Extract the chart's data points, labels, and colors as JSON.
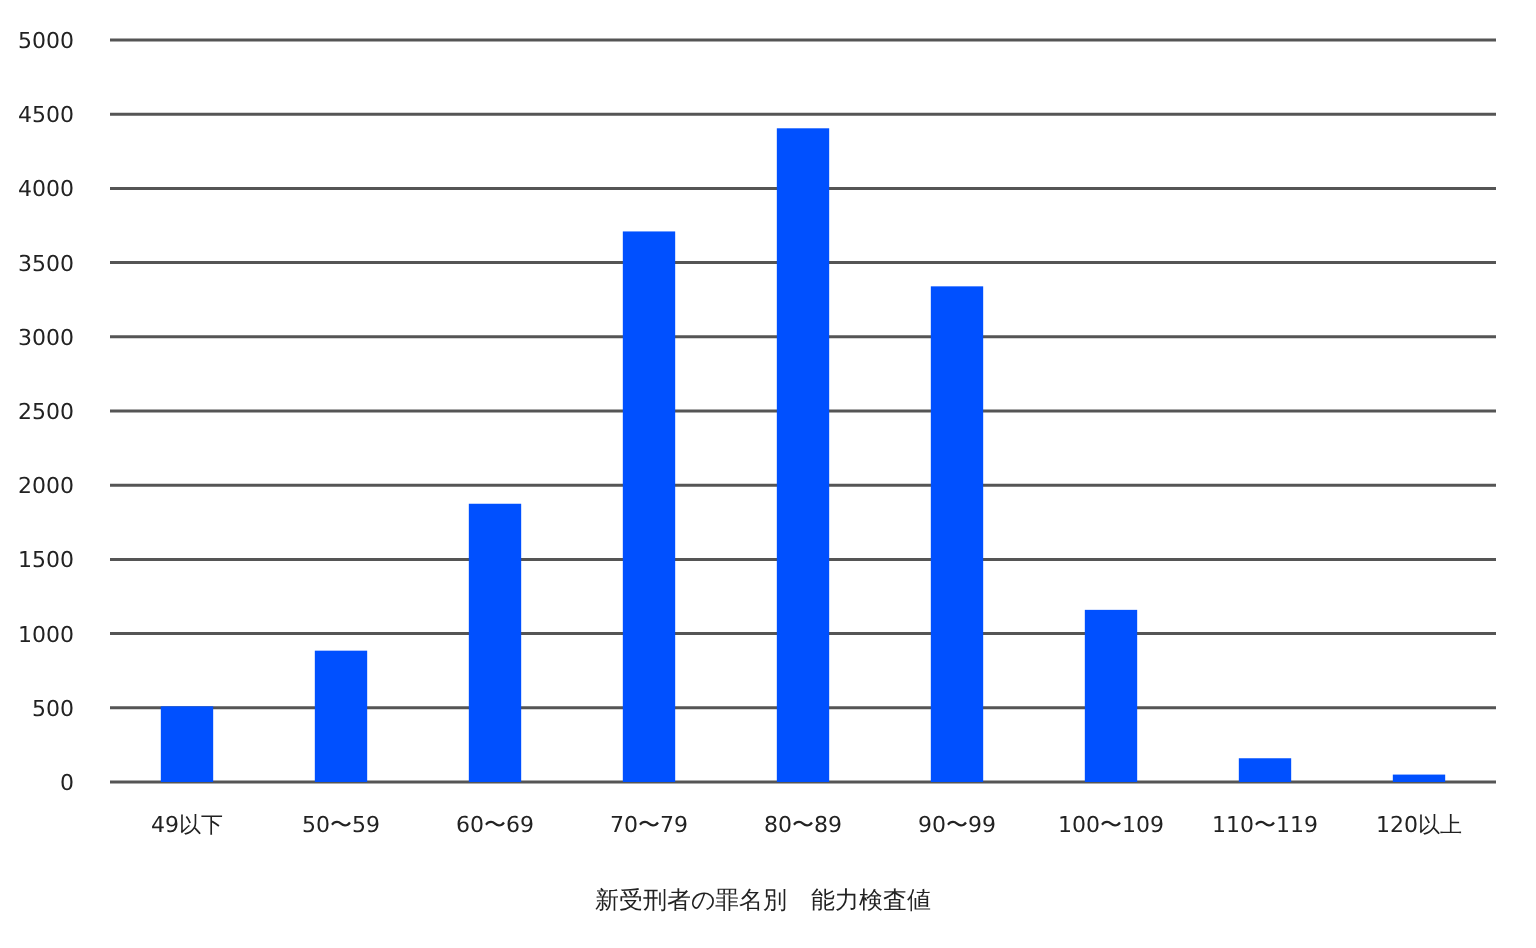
{
  "chart_data": {
    "type": "bar",
    "xlabel": "新受刑者の罪名別　能力検査値",
    "categories": [
      "49以下",
      "50〜59",
      "60〜69",
      "70〜79",
      "80〜89",
      "90〜99",
      "100〜109",
      "110〜119",
      "120以上"
    ],
    "values": [
      510,
      885,
      1875,
      3710,
      4405,
      3340,
      1160,
      160,
      50
    ],
    "color": "#0050ff",
    "ylim": [
      0,
      5000
    ],
    "yticks": [
      0,
      500,
      1000,
      1500,
      2000,
      2500,
      3000,
      3500,
      4000,
      4500,
      5000
    ],
    "grid": "y",
    "legend": false
  }
}
